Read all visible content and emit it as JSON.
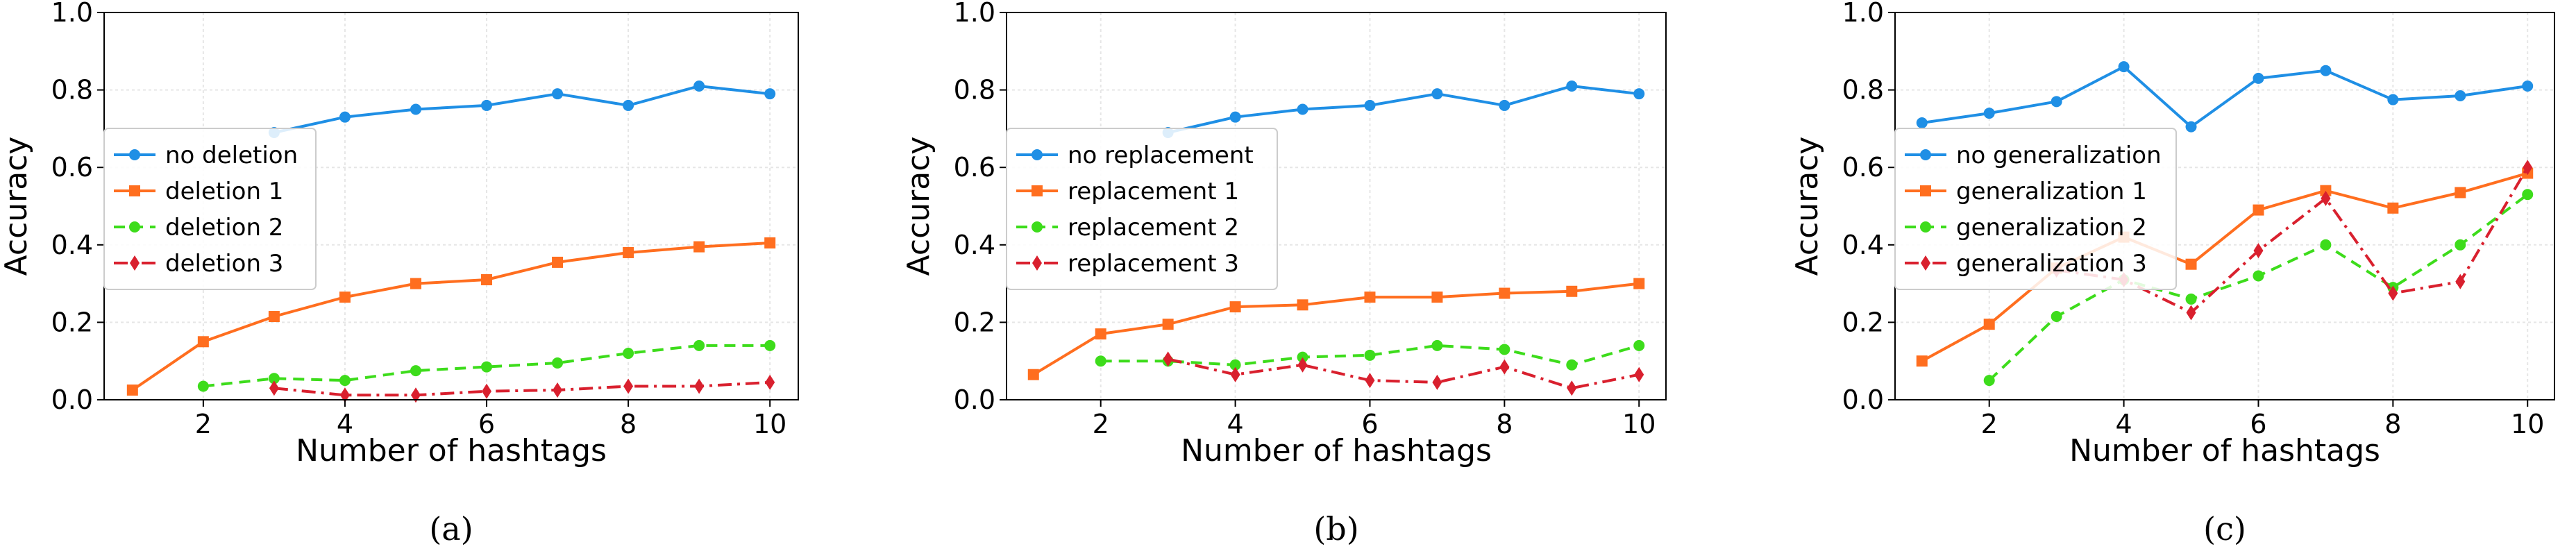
{
  "chart_data": [
    {
      "type": "line",
      "caption": "(a)",
      "xlabel": "Number of hashtags",
      "ylabel": "Accuracy",
      "xlim": [
        0.6,
        10.4
      ],
      "ylim": [
        0.0,
        1.0
      ],
      "xticks": [
        2,
        4,
        6,
        8,
        10
      ],
      "yticks": [
        0.0,
        0.2,
        0.4,
        0.6,
        0.8,
        1.0
      ],
      "xtick_labels": [
        "2",
        "4",
        "6",
        "8",
        "10"
      ],
      "ytick_labels": [
        "0.0",
        "0.2",
        "0.4",
        "0.6",
        "0.8",
        "1.0"
      ],
      "grid": true,
      "legend_position": "center-left",
      "series": [
        {
          "name": "no deletion",
          "color": "#1f8fe5",
          "marker": "circle",
          "line": "solid",
          "x": [
            3,
            4,
            5,
            6,
            7,
            8,
            9,
            10
          ],
          "y": [
            0.69,
            0.73,
            0.75,
            0.76,
            0.79,
            0.76,
            0.81,
            0.79
          ]
        },
        {
          "name": "deletion 1",
          "color": "#ff6e1f",
          "marker": "square",
          "line": "solid",
          "x": [
            1,
            2,
            3,
            4,
            5,
            6,
            7,
            8,
            9,
            10
          ],
          "y": [
            0.025,
            0.15,
            0.215,
            0.265,
            0.3,
            0.31,
            0.355,
            0.38,
            0.395,
            0.405
          ]
        },
        {
          "name": "deletion 2",
          "color": "#3ddc1b",
          "marker": "circle",
          "line": "dashed",
          "x": [
            2,
            3,
            4,
            5,
            6,
            7,
            8,
            9,
            10
          ],
          "y": [
            0.035,
            0.055,
            0.05,
            0.075,
            0.085,
            0.095,
            0.12,
            0.14,
            0.14
          ]
        },
        {
          "name": "deletion 3",
          "color": "#d9202e",
          "marker": "diamond",
          "line": "dashdot",
          "x": [
            3,
            4,
            5,
            6,
            7,
            8,
            9,
            10
          ],
          "y": [
            0.03,
            0.012,
            0.012,
            0.022,
            0.025,
            0.035,
            0.035,
            0.045
          ]
        }
      ]
    },
    {
      "type": "line",
      "caption": "(b)",
      "xlabel": "Number of hashtags",
      "ylabel": "Accuracy",
      "xlim": [
        0.6,
        10.4
      ],
      "ylim": [
        0.0,
        1.0
      ],
      "xticks": [
        2,
        4,
        6,
        8,
        10
      ],
      "yticks": [
        0.0,
        0.2,
        0.4,
        0.6,
        0.8,
        1.0
      ],
      "xtick_labels": [
        "2",
        "4",
        "6",
        "8",
        "10"
      ],
      "ytick_labels": [
        "0.0",
        "0.2",
        "0.4",
        "0.6",
        "0.8",
        "1.0"
      ],
      "grid": true,
      "legend_position": "center-left",
      "series": [
        {
          "name": "no replacement",
          "color": "#1f8fe5",
          "marker": "circle",
          "line": "solid",
          "x": [
            3,
            4,
            5,
            6,
            7,
            8,
            9,
            10
          ],
          "y": [
            0.69,
            0.73,
            0.75,
            0.76,
            0.79,
            0.76,
            0.81,
            0.79
          ]
        },
        {
          "name": "replacement 1",
          "color": "#ff6e1f",
          "marker": "square",
          "line": "solid",
          "x": [
            1,
            2,
            3,
            4,
            5,
            6,
            7,
            8,
            9,
            10
          ],
          "y": [
            0.065,
            0.17,
            0.195,
            0.24,
            0.245,
            0.265,
            0.265,
            0.275,
            0.28,
            0.3
          ]
        },
        {
          "name": "replacement 2",
          "color": "#3ddc1b",
          "marker": "circle",
          "line": "dashed",
          "x": [
            2,
            3,
            4,
            5,
            6,
            7,
            8,
            9,
            10
          ],
          "y": [
            0.1,
            0.1,
            0.09,
            0.11,
            0.115,
            0.14,
            0.13,
            0.09,
            0.14
          ]
        },
        {
          "name": "replacement 3",
          "color": "#d9202e",
          "marker": "diamond",
          "line": "dashdot",
          "x": [
            3,
            4,
            5,
            6,
            7,
            8,
            9,
            10
          ],
          "y": [
            0.105,
            0.065,
            0.09,
            0.05,
            0.045,
            0.085,
            0.03,
            0.065
          ]
        }
      ]
    },
    {
      "type": "line",
      "caption": "(c)",
      "xlabel": "Number of hashtags",
      "ylabel": "Accuracy",
      "xlim": [
        0.6,
        10.4
      ],
      "ylim": [
        0.0,
        1.0
      ],
      "xticks": [
        2,
        4,
        6,
        8,
        10
      ],
      "yticks": [
        0.0,
        0.2,
        0.4,
        0.6,
        0.8,
        1.0
      ],
      "xtick_labels": [
        "2",
        "4",
        "6",
        "8",
        "10"
      ],
      "ytick_labels": [
        "0.0",
        "0.2",
        "0.4",
        "0.6",
        "0.8",
        "1.0"
      ],
      "grid": true,
      "legend_position": "center-left",
      "series": [
        {
          "name": "no generalization",
          "color": "#1f8fe5",
          "marker": "circle",
          "line": "solid",
          "x": [
            1,
            2,
            3,
            4,
            5,
            6,
            7,
            8,
            9,
            10
          ],
          "y": [
            0.715,
            0.74,
            0.77,
            0.86,
            0.705,
            0.83,
            0.85,
            0.775,
            0.785,
            0.81
          ]
        },
        {
          "name": "generalization 1",
          "color": "#ff6e1f",
          "marker": "square",
          "line": "solid",
          "x": [
            1,
            2,
            3,
            4,
            5,
            6,
            7,
            8,
            9,
            10
          ],
          "y": [
            0.1,
            0.195,
            0.34,
            0.42,
            0.35,
            0.49,
            0.54,
            0.495,
            0.535,
            0.585
          ]
        },
        {
          "name": "generalization 2",
          "color": "#3ddc1b",
          "marker": "circle",
          "line": "dashed",
          "x": [
            2,
            3,
            4,
            5,
            6,
            7,
            8,
            9,
            10
          ],
          "y": [
            0.05,
            0.215,
            0.31,
            0.26,
            0.32,
            0.4,
            0.29,
            0.4,
            0.53
          ]
        },
        {
          "name": "generalization 3",
          "color": "#d9202e",
          "marker": "diamond",
          "line": "dashdot",
          "x": [
            3,
            4,
            5,
            6,
            7,
            8,
            9,
            10
          ],
          "y": [
            0.335,
            0.31,
            0.225,
            0.385,
            0.52,
            0.275,
            0.305,
            0.6
          ]
        }
      ]
    }
  ]
}
